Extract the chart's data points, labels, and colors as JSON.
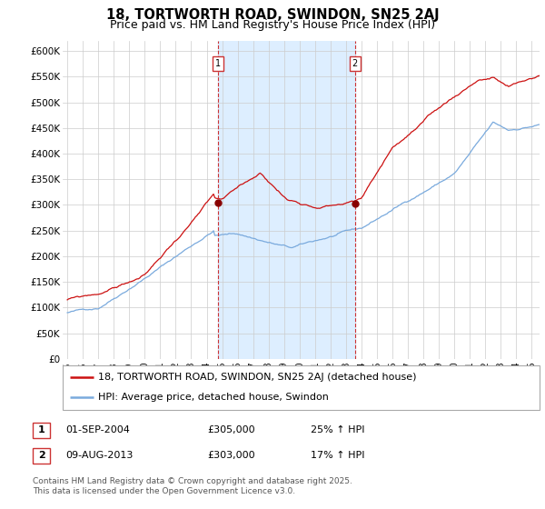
{
  "title": "18, TORTWORTH ROAD, SWINDON, SN25 2AJ",
  "subtitle": "Price paid vs. HM Land Registry's House Price Index (HPI)",
  "ylabel_ticks": [
    "£0",
    "£50K",
    "£100K",
    "£150K",
    "£200K",
    "£250K",
    "£300K",
    "£350K",
    "£400K",
    "£450K",
    "£500K",
    "£550K",
    "£600K"
  ],
  "ytick_vals": [
    0,
    50000,
    100000,
    150000,
    200000,
    250000,
    300000,
    350000,
    400000,
    450000,
    500000,
    550000,
    600000
  ],
  "ylim": [
    0,
    620000
  ],
  "xlim_start": 1994.7,
  "xlim_end": 2025.5,
  "line1_color": "#cc1111",
  "line2_color": "#7aaadd",
  "shade_color": "#ddeeff",
  "grid_color": "#cccccc",
  "bg_color": "#ffffff",
  "ann1_x": 2004.75,
  "ann2_x": 2013.58,
  "ann1_y": 305000,
  "ann2_y": 303000,
  "dot_color": "#880000",
  "legend_line1": "18, TORTWORTH ROAD, SWINDON, SN25 2AJ (detached house)",
  "legend_line2": "HPI: Average price, detached house, Swindon",
  "table_row1": [
    "1",
    "01-SEP-2004",
    "£305,000",
    "25% ↑ HPI"
  ],
  "table_row2": [
    "2",
    "09-AUG-2013",
    "£303,000",
    "17% ↑ HPI"
  ],
  "footnote": "Contains HM Land Registry data © Crown copyright and database right 2025.\nThis data is licensed under the Open Government Licence v3.0.",
  "title_fontsize": 10.5,
  "subtitle_fontsize": 9,
  "tick_fontsize": 7.5,
  "legend_fontsize": 8,
  "table_fontsize": 8,
  "footnote_fontsize": 6.5
}
